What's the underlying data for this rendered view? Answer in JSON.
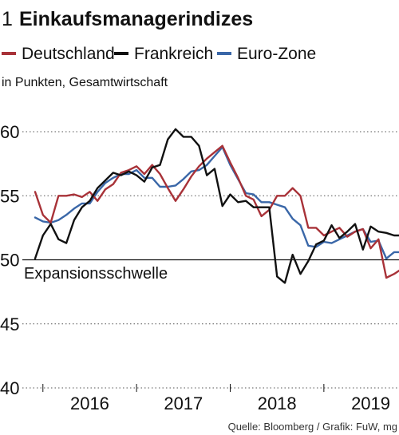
{
  "header": {
    "number": "1",
    "title": "Einkaufsmanagerindizes"
  },
  "subtitle": "in Punkten, Gesamtwirtschaft",
  "source": "Quelle: Bloomberg / Grafik: FuW, mg",
  "chart_data": {
    "type": "line",
    "title": "Einkaufsmanagerindizes",
    "ylabel": "in Punkten, Gesamtwirtschaft",
    "ylim": [
      40,
      61
    ],
    "yticks": [
      40,
      45,
      50,
      55,
      60
    ],
    "x_axis": {
      "start": "2015-12",
      "end": "2020-01",
      "tick_labels": [
        "2016",
        "2017",
        "2018",
        "2019",
        "20"
      ]
    },
    "grid": "horizontal dotted",
    "legend_position": "top",
    "annotation": {
      "label": "Expansionsschwelle",
      "y": 50
    },
    "colors": {
      "Deutschland": "#a83238",
      "Frankreich": "#111111",
      "Euro-Zone": "#3a67a8"
    },
    "series": [
      {
        "name": "Deutschland",
        "x": [
          "2015-12",
          "2016-01",
          "2016-02",
          "2016-03",
          "2016-04",
          "2016-05",
          "2016-06",
          "2016-07",
          "2016-08",
          "2016-09",
          "2016-10",
          "2016-11",
          "2016-12",
          "2017-01",
          "2017-02",
          "2017-03",
          "2017-04",
          "2017-05",
          "2017-06",
          "2017-07",
          "2017-08",
          "2017-09",
          "2017-10",
          "2017-11",
          "2017-12",
          "2018-01",
          "2018-02",
          "2018-03",
          "2018-04",
          "2018-05",
          "2018-06",
          "2018-07",
          "2018-08",
          "2018-09",
          "2018-10",
          "2018-11",
          "2018-12",
          "2019-01",
          "2019-02",
          "2019-03",
          "2019-04",
          "2019-05",
          "2019-06",
          "2019-07",
          "2019-08",
          "2019-09",
          "2019-10",
          "2019-11",
          "2019-12"
        ],
        "values": [
          55.3,
          53.5,
          52.9,
          55.0,
          55.0,
          55.1,
          54.9,
          55.3,
          54.6,
          55.5,
          55.9,
          56.8,
          57.0,
          57.3,
          56.7,
          57.4,
          56.7,
          55.6,
          54.6,
          55.5,
          56.5,
          57.3,
          57.9,
          58.4,
          58.9,
          57.6,
          56.4,
          55.0,
          54.7,
          53.4,
          53.9,
          55.0,
          55.0,
          55.6,
          55.0,
          52.5,
          52.5,
          51.9,
          52.2,
          52.5,
          51.8,
          52.2,
          52.4,
          50.9,
          51.6,
          48.6,
          48.9,
          49.3,
          49.9
        ]
      },
      {
        "name": "Frankreich",
        "x": [
          "2015-12",
          "2016-01",
          "2016-02",
          "2016-03",
          "2016-04",
          "2016-05",
          "2016-06",
          "2016-07",
          "2016-08",
          "2016-09",
          "2016-10",
          "2016-11",
          "2016-12",
          "2017-01",
          "2017-02",
          "2017-03",
          "2017-04",
          "2017-05",
          "2017-06",
          "2017-07",
          "2017-08",
          "2017-09",
          "2017-10",
          "2017-11",
          "2017-12",
          "2018-01",
          "2018-02",
          "2018-03",
          "2018-04",
          "2018-05",
          "2018-06",
          "2018-07",
          "2018-08",
          "2018-09",
          "2018-10",
          "2018-11",
          "2018-12",
          "2019-01",
          "2019-02",
          "2019-03",
          "2019-04",
          "2019-05",
          "2019-06",
          "2019-07",
          "2019-08",
          "2019-09",
          "2019-10",
          "2019-11",
          "2019-12"
        ],
        "values": [
          50.1,
          51.9,
          52.8,
          51.6,
          51.3,
          53.1,
          54.1,
          54.6,
          55.6,
          56.2,
          56.8,
          56.6,
          56.9,
          56.6,
          56.1,
          57.2,
          57.4,
          59.4,
          60.2,
          59.6,
          59.6,
          58.9,
          56.6,
          57.1,
          54.2,
          55.1,
          54.5,
          54.6,
          54.1,
          54.1,
          54.1,
          48.7,
          48.2,
          50.4,
          48.9,
          49.9,
          51.2,
          51.5,
          52.7,
          51.7,
          52.2,
          52.8,
          50.8,
          52.6,
          52.2,
          52.1,
          51.9,
          51.9,
          51.4
        ]
      },
      {
        "name": "Euro-Zone",
        "x": [
          "2015-12",
          "2016-01",
          "2016-02",
          "2016-03",
          "2016-04",
          "2016-05",
          "2016-06",
          "2016-07",
          "2016-08",
          "2016-09",
          "2016-10",
          "2016-11",
          "2016-12",
          "2017-01",
          "2017-02",
          "2017-03",
          "2017-04",
          "2017-05",
          "2017-06",
          "2017-07",
          "2017-08",
          "2017-09",
          "2017-10",
          "2017-11",
          "2017-12",
          "2018-01",
          "2018-02",
          "2018-03",
          "2018-04",
          "2018-05",
          "2018-06",
          "2018-07",
          "2018-08",
          "2018-09",
          "2018-10",
          "2018-11",
          "2018-12",
          "2019-01",
          "2019-02",
          "2019-03",
          "2019-04",
          "2019-05",
          "2019-06",
          "2019-07",
          "2019-08",
          "2019-09",
          "2019-10",
          "2019-11",
          "2019-12"
        ],
        "values": [
          53.3,
          53.0,
          52.9,
          53.1,
          53.5,
          54.0,
          54.4,
          54.4,
          55.3,
          56.0,
          56.4,
          56.7,
          56.7,
          57.0,
          56.4,
          56.4,
          55.7,
          55.7,
          55.8,
          56.3,
          56.9,
          57.0,
          57.4,
          58.1,
          58.8,
          57.4,
          56.3,
          55.2,
          55.1,
          54.5,
          54.5,
          54.3,
          54.1,
          53.2,
          52.7,
          51.1,
          51.0,
          51.4,
          51.3,
          51.6,
          51.9,
          52.2,
          52.4,
          51.4,
          51.5,
          50.1,
          50.6,
          50.6,
          50.9
        ]
      }
    ]
  }
}
